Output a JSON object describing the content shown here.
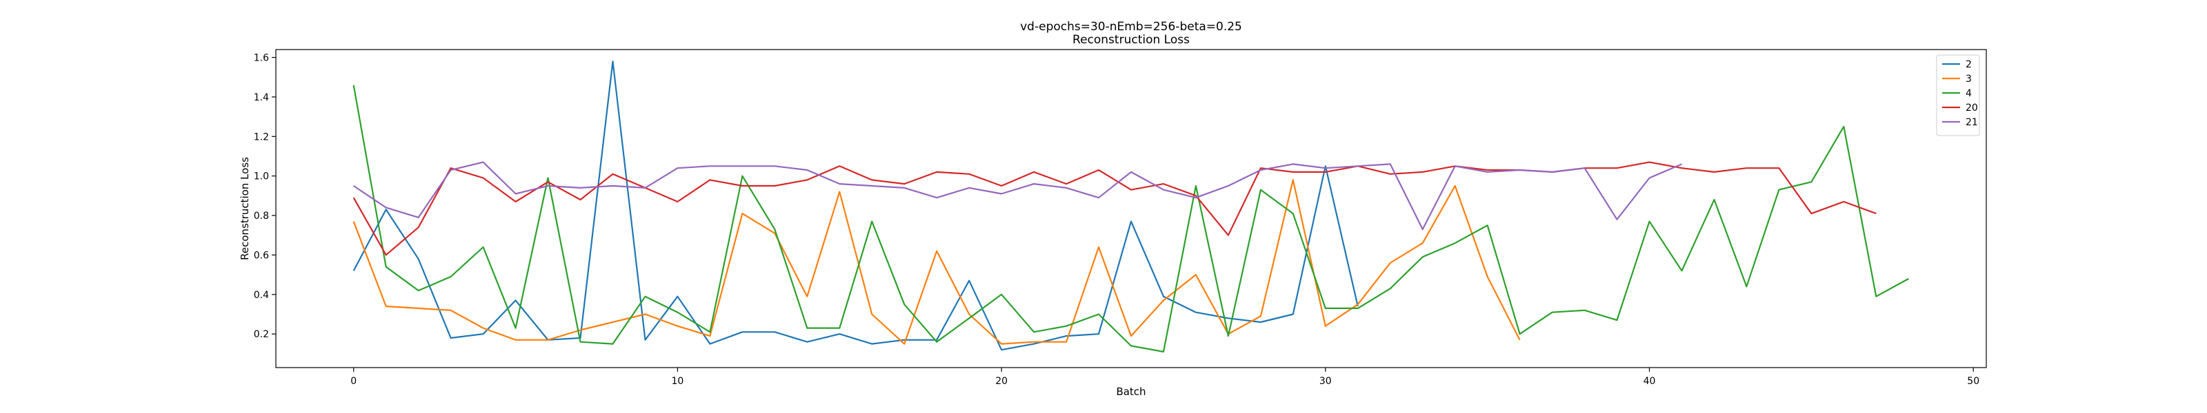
{
  "chart_data": {
    "type": "line",
    "title": "vd-epochs=30-nEmb=256-beta=0.25",
    "subtitle": "Reconstruction Loss",
    "xlabel": "Batch",
    "ylabel": "Reconstruction Loss",
    "xlim": [
      -2.4,
      50.4
    ],
    "ylim": [
      0.03,
      1.64
    ],
    "xticks": [
      0,
      10,
      20,
      30,
      40,
      50
    ],
    "yticks": [
      0.2,
      0.4,
      0.6,
      0.8,
      1.0,
      1.2,
      1.4,
      1.6
    ],
    "grid": false,
    "legend_position": "top-right",
    "series": [
      {
        "name": "2",
        "color": "#1f77b4",
        "values": [
          0.52,
          0.83,
          0.58,
          0.18,
          0.2,
          0.37,
          0.17,
          0.18,
          1.58,
          0.17,
          0.39,
          0.15,
          0.21,
          0.21,
          0.16,
          0.2,
          0.15,
          0.17,
          0.17,
          0.47,
          0.12,
          0.15,
          0.19,
          0.2,
          0.77,
          0.39,
          0.31,
          0.28,
          0.26,
          0.3,
          1.05,
          0.34
        ]
      },
      {
        "name": "3",
        "color": "#ff7f0e",
        "values": [
          0.77,
          0.34,
          0.33,
          0.32,
          0.23,
          0.17,
          0.17,
          0.22,
          0.26,
          0.3,
          0.24,
          0.19,
          0.81,
          0.71,
          0.39,
          0.92,
          0.3,
          0.15,
          0.62,
          0.3,
          0.15,
          0.16,
          0.16,
          0.64,
          0.19,
          0.37,
          0.5,
          0.2,
          0.29,
          0.98,
          0.24,
          0.35,
          0.56,
          0.66,
          0.95,
          0.49,
          0.17
        ]
      },
      {
        "name": "4",
        "color": "#2ca02c",
        "values": [
          1.46,
          0.54,
          0.42,
          0.49,
          0.64,
          0.23,
          0.99,
          0.16,
          0.15,
          0.39,
          0.31,
          0.21,
          1.0,
          0.73,
          0.23,
          0.23,
          0.77,
          0.35,
          0.16,
          0.28,
          0.4,
          0.21,
          0.24,
          0.3,
          0.14,
          0.11,
          0.95,
          0.19,
          0.93,
          0.81,
          0.33,
          0.33,
          0.43,
          0.59,
          0.66,
          0.75,
          0.2,
          0.31,
          0.32,
          0.27,
          0.77,
          0.52,
          0.88,
          0.44,
          0.93,
          0.97,
          1.25,
          0.39,
          0.48
        ]
      },
      {
        "name": "20",
        "color": "#d62728",
        "values": [
          0.89,
          0.6,
          0.74,
          1.04,
          0.99,
          0.87,
          0.97,
          0.88,
          1.01,
          0.94,
          0.87,
          0.98,
          0.95,
          0.95,
          0.98,
          1.05,
          0.98,
          0.96,
          1.02,
          1.01,
          0.95,
          1.02,
          0.96,
          1.03,
          0.93,
          0.96,
          0.9,
          0.7,
          1.04,
          1.02,
          1.02,
          1.05,
          1.01,
          1.02,
          1.05,
          1.03,
          1.03,
          1.02,
          1.04,
          1.04,
          1.07,
          1.04,
          1.02,
          1.04,
          1.04,
          0.81,
          0.87,
          0.81
        ]
      },
      {
        "name": "21",
        "color": "#9467bd",
        "values": [
          0.95,
          0.84,
          0.79,
          1.03,
          1.07,
          0.91,
          0.95,
          0.94,
          0.95,
          0.94,
          1.04,
          1.05,
          1.05,
          1.05,
          1.03,
          0.96,
          0.95,
          0.94,
          0.89,
          0.94,
          0.91,
          0.96,
          0.94,
          0.89,
          1.02,
          0.93,
          0.89,
          0.95,
          1.03,
          1.06,
          1.04,
          1.05,
          1.06,
          0.73,
          1.05,
          1.02,
          1.03,
          1.02,
          1.04,
          0.78,
          0.99,
          1.06
        ]
      }
    ]
  }
}
